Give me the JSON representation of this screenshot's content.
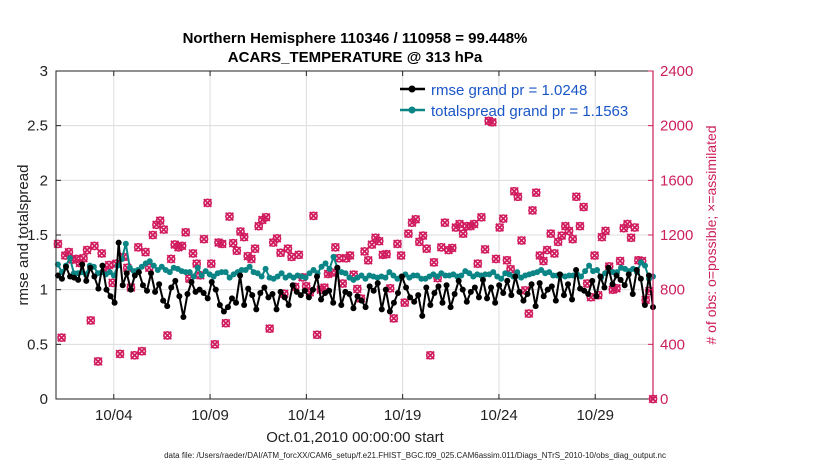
{
  "chart_data": {
    "type": "line",
    "title": "Northern Hemisphere 110346 / 110958 = 99.448%",
    "subtitle": "ACARS_TEMPERATURE @ 313 hPa",
    "xlabel": "Oct.01,2010 00:00:00 start",
    "ylabel": "rmse and totalspread",
    "ylabel_right": "# of obs: o=possible; ×=assimilated",
    "footnote": "data file: /Users/raeder/DAI/ATM_forcXX/CAM6_setup/f.e21.FHIST_BGC.f09_025.CAM6assim.011/Diags_NTrS_2010-10/obs_diag_output.nc",
    "xlim": [
      1.0,
      32.0
    ],
    "ylim": [
      0,
      3
    ],
    "ylim_right": [
      0,
      2400
    ],
    "x_ticks": [
      4,
      9,
      14,
      19,
      24,
      29
    ],
    "x_tick_labels": [
      "10/04",
      "10/09",
      "10/14",
      "10/19",
      "10/24",
      "10/29"
    ],
    "y_ticks": [
      0,
      0.5,
      1,
      1.5,
      2,
      2.5,
      3
    ],
    "y_tick_labels": [
      "0",
      "0.5",
      "1",
      "1.5",
      "2",
      "2.5",
      "3"
    ],
    "y_right_ticks": [
      0,
      400,
      800,
      1200,
      1600,
      2000,
      2400
    ],
    "y_right_tick_labels": [
      "0",
      "400",
      "800",
      "1200",
      "1600",
      "2000",
      "2400"
    ],
    "colors": {
      "rmse": "#000000",
      "spread": "#0b8585",
      "obs": "#d01c5e",
      "legend_text": "#1a56c7"
    },
    "series": [
      {
        "name": "rmse grand pr = 1.0248",
        "values": [
          1.13,
          1.1,
          1.21,
          1.12,
          1.11,
          1.09,
          1.23,
          1.08,
          1.2,
          1.12,
          1.01,
          1.22,
          1.0,
          0.94,
          0.88,
          1.43,
          1.04,
          1.15,
          1.0,
          1.13,
          1.16,
          1.04,
          0.99,
          1.15,
          0.98,
          1.05,
          0.9,
          0.85,
          1.02,
          1.08,
          0.94,
          0.75,
          0.96,
          1.07,
          0.98,
          1.0,
          0.97,
          0.92,
          1.07,
          1.0,
          0.86,
          0.8,
          0.84,
          0.92,
          0.88,
          1.13,
          0.86,
          1.01,
          0.95,
          0.82,
          0.97,
          1.02,
          0.93,
          0.96,
          0.82,
          0.98,
          0.93,
          0.86,
          1.04,
          0.98,
          0.95,
          0.99,
          0.93,
          1.0,
          1.12,
          0.91,
          0.97,
          0.99,
          0.88,
          1.2,
          0.86,
          0.98,
          0.96,
          0.83,
          0.94,
          0.9,
          0.84,
          1.03,
          0.99,
          1.06,
          0.82,
          1.0,
          0.8,
          0.88,
          0.97,
          1.12,
          1.02,
          0.93,
          0.89,
          0.95,
          0.76,
          1.02,
          0.86,
          0.97,
          1.03,
          0.88,
          1.04,
          0.84,
          0.96,
          1.08,
          1.0,
          0.89,
          0.98,
          1.02,
          0.93,
          1.09,
          0.92,
          1.02,
          0.88,
          1.04,
          0.97,
          1.08,
          0.95,
          1.12,
          0.98,
          0.9,
          0.96,
          1.05,
          0.85,
          1.06,
          0.94,
          1.0,
          1.03,
          0.9,
          1.14,
          0.95,
          1.05,
          0.91,
          1.18,
          1.01,
          0.99,
          0.96,
          1.08,
          0.94,
          1.12,
          1.02,
          1.2,
          1.05,
          1.13,
          1.09,
          1.04,
          1.14,
          0.96,
          1.18,
          1.1,
          0.86,
          1.13,
          0.84
        ]
      },
      {
        "name": "totalspread grand pr = 1.1563",
        "values": [
          1.23,
          1.16,
          1.22,
          1.29,
          1.15,
          1.15,
          1.16,
          1.14,
          1.22,
          1.21,
          1.15,
          1.16,
          1.14,
          1.16,
          1.13,
          1.22,
          1.28,
          1.42,
          1.2,
          1.17,
          1.18,
          1.21,
          1.24,
          1.26,
          1.22,
          1.18,
          1.21,
          1.18,
          1.16,
          1.2,
          1.19,
          1.17,
          1.16,
          1.16,
          1.12,
          1.2,
          1.13,
          1.17,
          1.14,
          1.12,
          1.15,
          1.16,
          1.16,
          1.11,
          1.14,
          1.16,
          1.18,
          1.18,
          1.21,
          1.16,
          1.15,
          1.12,
          1.19,
          1.11,
          1.1,
          1.12,
          1.15,
          1.11,
          1.13,
          1.11,
          1.13,
          1.12,
          1.11,
          1.15,
          1.18,
          1.15,
          1.21,
          1.24,
          1.19,
          1.3,
          1.2,
          1.16,
          1.15,
          1.11,
          1.09,
          1.11,
          1.13,
          1.1,
          1.13,
          1.12,
          1.11,
          1.12,
          1.11,
          1.16,
          1.13,
          1.1,
          1.12,
          1.14,
          1.11,
          1.13,
          1.13,
          1.1,
          1.1,
          1.12,
          1.14,
          1.12,
          1.15,
          1.13,
          1.13,
          1.14,
          1.12,
          1.13,
          1.17,
          1.15,
          1.12,
          1.14,
          1.13,
          1.14,
          1.14,
          1.16,
          1.12,
          1.1,
          1.15,
          1.14,
          1.12,
          1.16,
          1.11,
          1.13,
          1.14,
          1.15,
          1.16,
          1.18,
          1.15,
          1.16,
          1.13,
          1.13,
          1.13,
          1.12,
          1.13,
          1.13,
          1.14,
          1.12,
          1.17,
          1.22,
          1.17,
          1.18,
          1.11,
          1.15,
          1.17,
          1.16,
          1.16,
          1.2,
          1.19,
          1.17,
          1.19,
          1.16,
          1.25,
          1.22,
          1.1,
          1.12
        ]
      },
      {
        "name": "# of obs",
        "values": [
          1135,
          449,
          1050,
          1075,
          1020,
          1025,
          995,
          1030,
          1090,
          575,
          1120,
          275,
          1065,
          940,
          980,
          850,
          990,
          330,
          1040,
          960,
          815,
          320,
          1110,
          350,
          1075,
          960,
          1200,
          1275,
          1305,
          1240,
          465,
          1025,
          1130,
          1110,
          1120,
          1220,
          880,
          1065,
          990,
          905,
          1170,
          1435,
          990,
          400,
          1145,
          1135,
          555,
          1335,
          1140,
          1085,
          1225,
          1185,
          1045,
          1025,
          1100,
          1265,
          1310,
          1330,
          515,
          1145,
          1175,
          1070,
          770,
          1100,
          1040,
          820,
          1055,
          890,
          825,
          780,
          1340,
          470,
          800,
          815,
          915,
          925,
          1110,
          1030,
          845,
          1030,
          1050,
          910,
          805,
          735,
          1080,
          1015,
          1130,
          1180,
          1155,
          1055,
          1060,
          810,
          590,
          1135,
          1050,
          705,
          1210,
          1290,
          1315,
          1150,
          1195,
          1100,
          320,
          1000,
          885,
          1110,
          1290,
          1090,
          1105,
          1255,
          1280,
          1210,
          1265,
          1265,
          1280,
          990,
          1330,
          1095,
          2035,
          2025,
          1025,
          1255,
          1320,
          1015,
          950,
          1520,
          1480,
          1160,
          795,
          625,
          1380,
          1510,
          1050,
          1010,
          1090,
          1210,
          1065,
          1150,
          1195,
          1265,
          1230,
          1170,
          1480,
          1265,
          1405,
          845,
          745,
          1050,
          760,
          1185,
          1230,
          970,
          800,
          810,
          1010,
          1250,
          1280,
          1180,
          1255,
          1015,
          1010,
          725,
          790,
          0
        ]
      }
    ]
  }
}
